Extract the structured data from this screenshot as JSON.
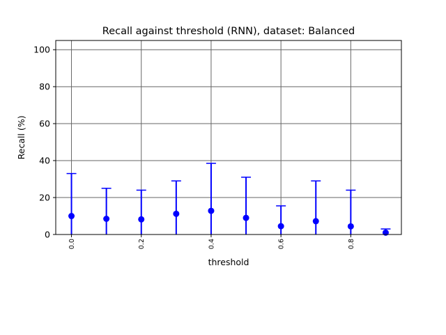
{
  "chart_data": {
    "type": "scatter",
    "title": "Recall against threshold (RNN), dataset: Balanced",
    "xlabel": "threshold",
    "ylabel": "Recall (%)",
    "xlim": [
      -0.045,
      0.945
    ],
    "ylim": [
      0,
      105
    ],
    "xticks": [
      0.0,
      0.2,
      0.4,
      0.6,
      0.8
    ],
    "xtick_labels": [
      "0.0",
      "0.2",
      "0.4",
      "0.6",
      "0.8"
    ],
    "yticks": [
      0,
      20,
      40,
      60,
      80,
      100
    ],
    "ytick_labels": [
      "0",
      "20",
      "40",
      "60",
      "80",
      "100"
    ],
    "grid": true,
    "color": "#0000ff",
    "error_bars": "asymmetric, lower bound clipped at 0",
    "x": [
      0.0,
      0.1,
      0.2,
      0.3,
      0.4,
      0.5,
      0.6,
      0.7,
      0.8,
      0.9
    ],
    "y": [
      10.0,
      8.5,
      8.2,
      11.2,
      12.8,
      9.0,
      4.5,
      7.2,
      4.4,
      1.0
    ],
    "yerr_upper": [
      33.0,
      25.0,
      24.0,
      29.0,
      38.5,
      31.0,
      15.5,
      29.0,
      24.0,
      3.0
    ]
  }
}
